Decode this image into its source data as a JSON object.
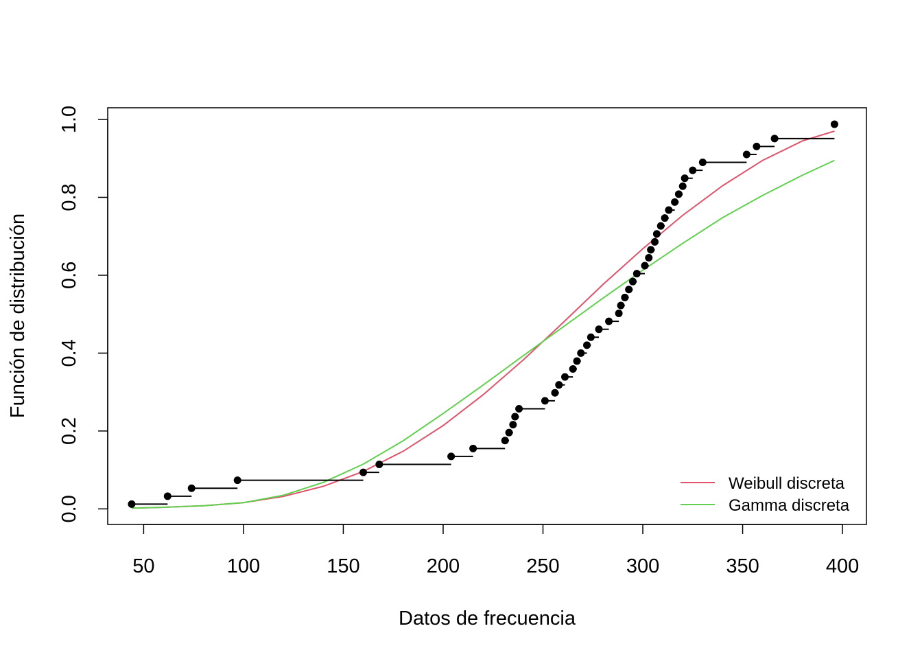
{
  "chart_data": {
    "type": "line",
    "title": "",
    "xlabel": "Datos de frecuencia",
    "ylabel": "Función de distribución",
    "xlim": [
      32,
      412
    ],
    "ylim": [
      -0.04,
      1.03
    ],
    "x_ticks": [
      50,
      100,
      150,
      200,
      250,
      300,
      350,
      400
    ],
    "y_ticks": [
      0.0,
      0.2,
      0.4,
      0.6,
      0.8,
      1.0
    ],
    "x_tick_labels": [
      "50",
      "100",
      "150",
      "200",
      "250",
      "300",
      "350",
      "400"
    ],
    "y_tick_labels": [
      "0.0",
      "0.2",
      "0.4",
      "0.6",
      "0.8",
      "1.0"
    ],
    "grid": false,
    "legend_position": "bottom-right",
    "empirical": {
      "color": "#000000",
      "x": [
        44,
        62,
        74,
        97,
        160,
        168,
        204,
        215,
        231,
        233,
        235,
        236,
        238,
        251,
        256,
        258,
        261,
        265,
        267,
        269,
        272,
        274,
        278,
        283,
        288,
        289,
        291,
        293,
        295,
        297,
        301,
        303,
        304,
        306,
        307,
        309,
        311,
        313,
        316,
        318,
        320,
        321,
        325,
        330,
        352,
        357,
        366,
        396
      ],
      "y": [
        0.0122,
        0.0326,
        0.053,
        0.0734,
        0.0938,
        0.1143,
        0.1347,
        0.1551,
        0.1755,
        0.1959,
        0.2163,
        0.2367,
        0.2571,
        0.2776,
        0.298,
        0.3184,
        0.3388,
        0.3592,
        0.3796,
        0.4,
        0.4204,
        0.4408,
        0.4612,
        0.4816,
        0.502,
        0.5224,
        0.5429,
        0.5633,
        0.5837,
        0.6041,
        0.6245,
        0.6449,
        0.6653,
        0.6857,
        0.7061,
        0.7265,
        0.7469,
        0.7673,
        0.7878,
        0.8082,
        0.8286,
        0.849,
        0.8694,
        0.8898,
        0.9102,
        0.9306,
        0.951,
        0.9878
      ]
    },
    "series": [
      {
        "name": "Weibull discreta",
        "color": "#DF536B",
        "x": [
          44,
          60,
          80,
          100,
          120,
          140,
          160,
          180,
          200,
          220,
          240,
          260,
          280,
          300,
          320,
          340,
          360,
          380,
          396
        ],
        "values": [
          0.002,
          0.004,
          0.008,
          0.016,
          0.032,
          0.058,
          0.096,
          0.148,
          0.214,
          0.293,
          0.382,
          0.478,
          0.576,
          0.668,
          0.754,
          0.83,
          0.895,
          0.945,
          0.97
        ]
      },
      {
        "name": "Gamma discreta",
        "color": "#61D04F",
        "x": [
          44,
          60,
          80,
          100,
          120,
          140,
          160,
          180,
          200,
          220,
          240,
          260,
          280,
          300,
          320,
          340,
          360,
          380,
          396
        ],
        "values": [
          0.002,
          0.004,
          0.008,
          0.016,
          0.035,
          0.068,
          0.115,
          0.175,
          0.245,
          0.318,
          0.393,
          0.467,
          0.541,
          0.613,
          0.682,
          0.748,
          0.805,
          0.857,
          0.895
        ]
      }
    ]
  }
}
